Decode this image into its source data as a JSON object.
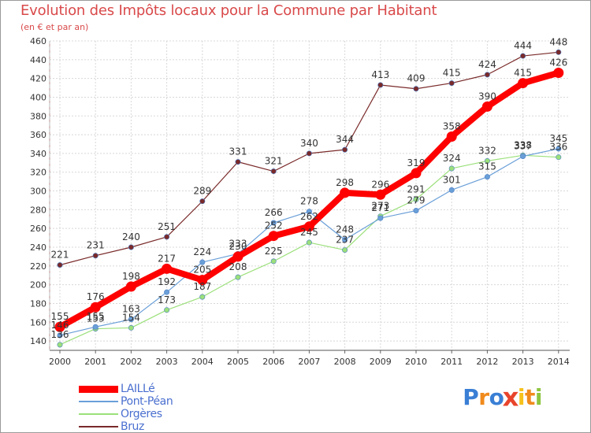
{
  "header": {
    "title": "Evolution des Impôts locaux pour la Commune par Habitant",
    "subtitle": "(en € et par an)"
  },
  "logo": {
    "letters": [
      "P",
      "r",
      "o",
      "x",
      "i",
      "t",
      "i"
    ],
    "colors": [
      "#3a7fd5",
      "#f08a1c",
      "#3a7fd5",
      "#e8442c",
      "#f6c21b",
      "#f08a1c",
      "#8dc63f"
    ]
  },
  "chart_data": {
    "type": "line",
    "title": "Evolution des Impôts locaux pour la Commune par Habitant",
    "subtitle": "(en € et par an)",
    "x": [
      2000,
      2001,
      2002,
      2003,
      2004,
      2005,
      2006,
      2007,
      2008,
      2009,
      2010,
      2011,
      2012,
      2013,
      2014
    ],
    "x_tick_labels": [
      "2000",
      "2001",
      "2002",
      "2003",
      "2004",
      "2005",
      "2006",
      "2007",
      "2008",
      "2009",
      "2010",
      "2011",
      "2012",
      "2013",
      "2014"
    ],
    "ylim": [
      130,
      460
    ],
    "yticks": [
      140,
      160,
      180,
      200,
      220,
      240,
      260,
      280,
      300,
      320,
      340,
      360,
      380,
      400,
      420,
      440,
      460
    ],
    "ytick_labels": [
      "140",
      "160",
      "180",
      "200",
      "220",
      "240",
      "260",
      "280",
      "300",
      "320",
      "340",
      "360",
      "380",
      "400",
      "420",
      "440",
      "460"
    ],
    "grid": true,
    "legend_position": "bottom-left",
    "series": [
      {
        "name": "LAILLé",
        "color": "#ff0000",
        "values": [
          155,
          176,
          198,
          217,
          205,
          230,
          252,
          262,
          298,
          296,
          319,
          358,
          390,
          415,
          426
        ],
        "labels": [
          "155",
          "176",
          "198",
          "217",
          "205",
          "230",
          "252",
          "262",
          "298",
          "296",
          "319",
          "358",
          "390",
          "415",
          "426"
        ]
      },
      {
        "name": "Pont-Péan",
        "color": "#6a9fd8",
        "values": [
          146,
          155,
          163,
          192,
          224,
          233,
          266,
          278,
          248,
          271,
          279,
          301,
          315,
          337,
          345
        ],
        "labels": [
          "146",
          "155",
          "163",
          "192",
          "224",
          "233",
          "266",
          "278",
          "248",
          "271",
          "279",
          "301",
          "315",
          "337",
          "345"
        ]
      },
      {
        "name": "Orgères",
        "color": "#9be07a",
        "values": [
          136,
          153,
          154,
          173,
          187,
          208,
          225,
          245,
          237,
          273,
          291,
          324,
          332,
          338,
          336
        ],
        "labels": [
          "136",
          "153",
          "154",
          "173",
          "187",
          "208",
          "225",
          "245",
          "237",
          "273",
          "291",
          "324",
          "332",
          "338",
          "336"
        ]
      },
      {
        "name": "Bruz",
        "color": "#7a2a2a",
        "values": [
          221,
          231,
          240,
          251,
          289,
          331,
          321,
          340,
          344,
          413,
          409,
          415,
          424,
          444,
          448
        ],
        "labels": [
          "221",
          "231",
          "240",
          "251",
          "289",
          "331",
          "321",
          "340",
          "344",
          "413",
          "409",
          "415",
          "424",
          "444",
          "448"
        ]
      }
    ]
  }
}
